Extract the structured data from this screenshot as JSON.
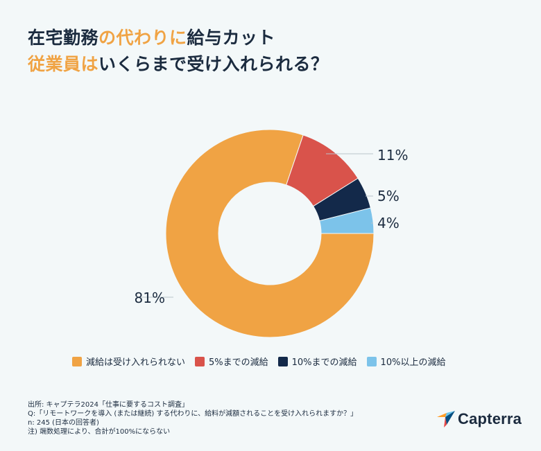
{
  "title": {
    "line1": [
      {
        "text": "在宅勤務",
        "style": "dk"
      },
      {
        "text": "の代わりに",
        "style": "hl"
      },
      {
        "text": "給与カット",
        "style": "dk"
      }
    ],
    "line2": [
      {
        "text": "従業員は",
        "style": "hl"
      },
      {
        "text": "いくらまで受け入れられる？",
        "style": "dk"
      }
    ]
  },
  "chart_data": {
    "type": "pie",
    "donut": true,
    "slices": [
      {
        "label": "減給は受け入れられない",
        "value": 81,
        "value_label": "81%",
        "color": "#f0a344"
      },
      {
        "label": "5%までの減給",
        "value": 11,
        "value_label": "11%",
        "color": "#d9534b"
      },
      {
        "label": "10%までの減給",
        "value": 5,
        "value_label": "5%",
        "color": "#13294a"
      },
      {
        "label": "10%以上の減給",
        "value": 4,
        "value_label": "4%",
        "color": "#7cc3ea"
      }
    ],
    "legend_position": "bottom"
  },
  "footer": {
    "source": "出所: キャプテラ2024「仕事に要するコスト調査」",
    "question": "Q:「リモートワークを導入 (または継続) する代わりに、給料が減額されることを受け入れられますか？」",
    "n": "n: 245 (日本の回答者)",
    "note": "注)  端数処理により、合計が100%にならない"
  },
  "logo": {
    "text": "Capterra",
    "icon": "capterra-arrow-icon",
    "colors": [
      "#ff9d28",
      "#68c5ed",
      "#044d80",
      "#e54747"
    ]
  }
}
